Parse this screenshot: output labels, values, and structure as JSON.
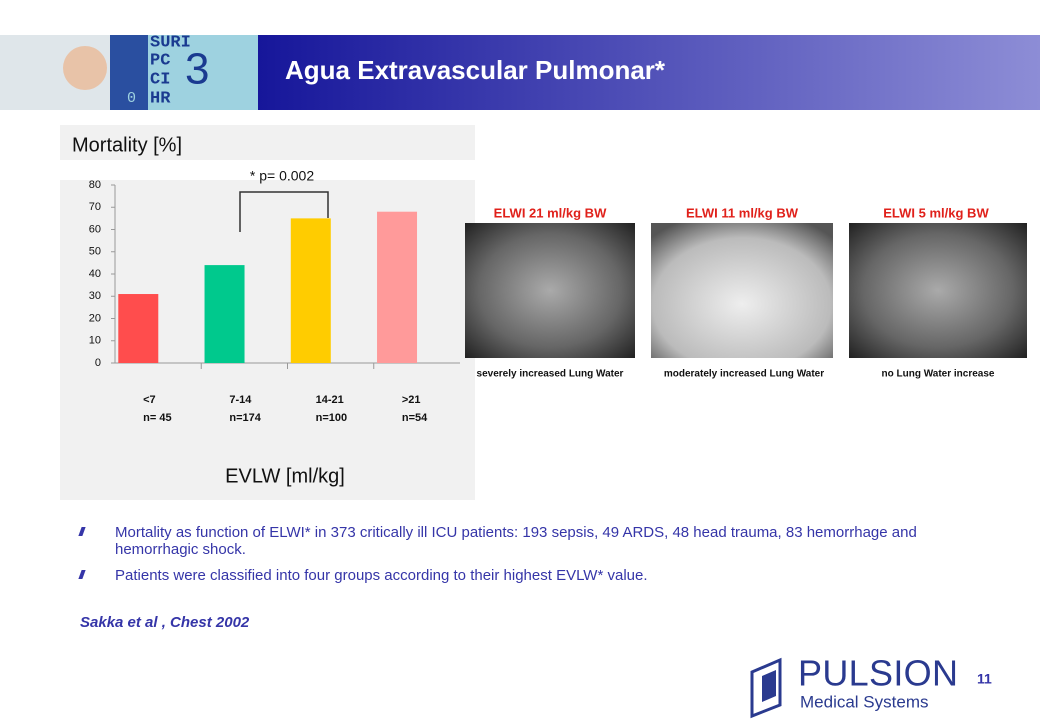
{
  "header": {
    "title": "Agua Extravascular Pulmonar*",
    "monitor_text": [
      "SURI",
      "PC",
      "CI",
      "HR",
      "3",
      "0"
    ]
  },
  "chart_data": {
    "type": "bar",
    "title": "Mortality [%]",
    "x_label": "EVLW [ml/kg]",
    "annotation": "* p= 0.002",
    "categories": [
      "<7",
      "7-14",
      "14-21",
      ">21"
    ],
    "n_labels": [
      "n= 45",
      "n=174",
      "n=100",
      "n=54"
    ],
    "values": [
      31,
      44,
      65,
      68
    ],
    "colors": [
      "#ff4d4d",
      "#00c98d",
      "#ffcc00",
      "#ff9a9a"
    ],
    "ylim": [
      0,
      80
    ],
    "yticks": [
      0,
      10,
      20,
      30,
      40,
      50,
      60,
      70,
      80
    ]
  },
  "xrays": [
    {
      "title": "ELWI 21 ml/kg BW",
      "caption": "severely increased Lung Water"
    },
    {
      "title": "ELWI 11 ml/kg BW",
      "caption": "moderately increased Lung Water"
    },
    {
      "title": "ELWI 5 ml/kg BW",
      "caption": "no Lung Water increase"
    }
  ],
  "bullets": [
    "Mortality as function of ELWI* in 373 critically ill ICU patients: 193 sepsis, 49 ARDS, 48 head trauma, 83 hemorrhage and hemorrhagic shock.",
    "Patients were classified into four groups according to their highest EVLW* value."
  ],
  "citation": "Sakka et al , Chest 2002",
  "page_number": "11",
  "logo": {
    "name": "PULSION",
    "subtitle": "Medical Systems"
  }
}
